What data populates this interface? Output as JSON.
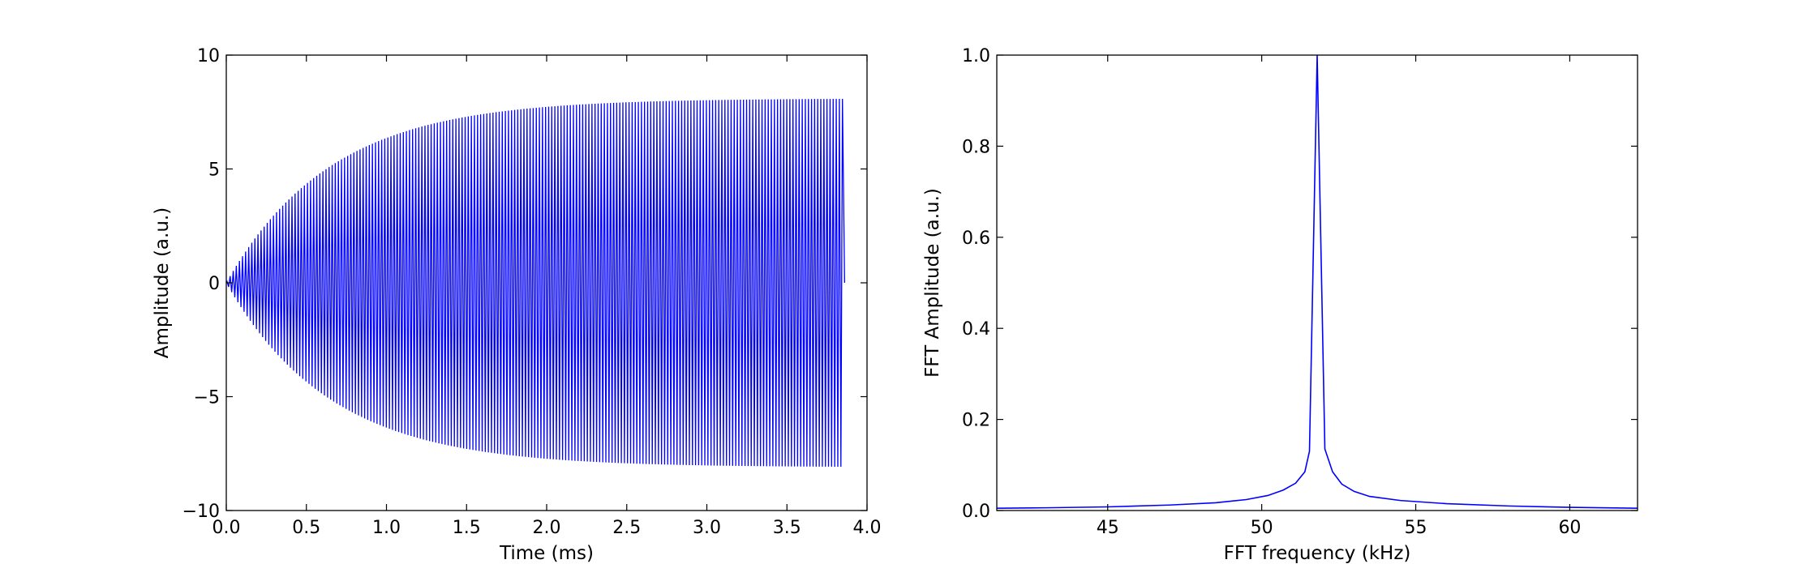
{
  "chart_data": [
    {
      "type": "line",
      "xlabel": "Time (ms)",
      "ylabel": "Amplitude (a.u.)",
      "xlim": [
        0,
        4.0
      ],
      "ylim": [
        -10,
        10
      ],
      "xticks": [
        0.0,
        0.5,
        1.0,
        1.5,
        2.0,
        2.5,
        3.0,
        3.5,
        4.0
      ],
      "xtick_labels": [
        "0.0",
        "0.5",
        "1.0",
        "1.5",
        "2.0",
        "2.5",
        "3.0",
        "3.5",
        "4.0"
      ],
      "yticks": [
        -10,
        -5,
        0,
        5,
        10
      ],
      "ytick_labels": [
        "−10",
        "−5",
        "0",
        "5",
        "10"
      ],
      "grid": false,
      "series": [
        {
          "color": "#0000ff",
          "signal": {
            "kind": "rising_sinusoid",
            "steady_amplitude": 8.1,
            "time_constant_ms": 0.65,
            "frequency_khz": 51.8,
            "t_start_ms": 0.0,
            "t_end_ms": 3.86
          }
        }
      ]
    },
    {
      "type": "line",
      "xlabel": "FFT frequency (kHz)",
      "ylabel": "FFT Amplitude (a.u.)",
      "xlim": [
        41.4,
        62.2
      ],
      "ylim": [
        0,
        1.0
      ],
      "xticks": [
        45,
        50,
        55,
        60
      ],
      "xtick_labels": [
        "45",
        "50",
        "55",
        "60"
      ],
      "yticks": [
        0.0,
        0.2,
        0.4,
        0.6,
        0.8,
        1.0
      ],
      "ytick_labels": [
        "0.0",
        "0.2",
        "0.4",
        "0.6",
        "0.8",
        "1.0"
      ],
      "grid": false,
      "series": [
        {
          "color": "#0000ff",
          "x": [
            41.4,
            43.0,
            45.0,
            47.0,
            48.5,
            49.5,
            50.2,
            50.7,
            51.1,
            51.4,
            51.55,
            51.8,
            52.05,
            52.3,
            52.6,
            53.0,
            53.5,
            54.5,
            56.0,
            58.0,
            60.0,
            62.2
          ],
          "y": [
            0.005,
            0.006,
            0.008,
            0.012,
            0.017,
            0.024,
            0.033,
            0.045,
            0.06,
            0.085,
            0.13,
            1.0,
            0.135,
            0.085,
            0.058,
            0.042,
            0.031,
            0.022,
            0.015,
            0.01,
            0.007,
            0.005
          ]
        }
      ]
    }
  ]
}
